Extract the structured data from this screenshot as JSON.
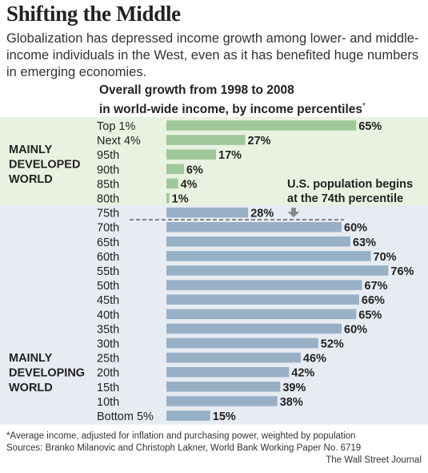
{
  "header": {
    "title": "Shifting the Middle",
    "subtitle": "Globalization has depressed income growth among lower- and middle-income individuals in the West, even as it has benefited huge numbers in emerging economies."
  },
  "chart_title": {
    "line1": "Overall growth from 1998 to 2008",
    "line2": "in world-wide income, by income percentiles",
    "marker": "*"
  },
  "regions": {
    "developed": [
      "MAINLY",
      "DEVELOPED",
      "WORLD"
    ],
    "developing": [
      "MAINLY",
      "DEVELOPING",
      "WORLD"
    ]
  },
  "annotation": {
    "line1": "U.S. population begins",
    "line2": "at the 74th percentile"
  },
  "colors": {
    "developed_bg": "#e9f2e1",
    "developing_bg": "#e6ecf2",
    "developed_bar": "#9ec79a",
    "developing_bar": "#98b0c6",
    "arrow": "#8a8a8a",
    "dash": "#777777"
  },
  "chart_data": {
    "type": "bar",
    "orientation": "horizontal",
    "categories": [
      "Top 1%",
      "Next 4%",
      "95th",
      "90th",
      "85th",
      "80th",
      "75th",
      "70th",
      "65th",
      "60th",
      "55th",
      "50th",
      "45th",
      "40th",
      "35th",
      "30th",
      "25th",
      "20th",
      "15th",
      "10th",
      "Bottom 5%"
    ],
    "values": [
      65,
      27,
      17,
      6,
      4,
      1,
      28,
      60,
      63,
      70,
      76,
      67,
      66,
      65,
      60,
      52,
      46,
      42,
      39,
      38,
      15
    ],
    "labels": [
      "65%",
      "27%",
      "17%",
      "6%",
      "4%",
      "1%",
      "28%",
      "60%",
      "63%",
      "70%",
      "76%",
      "67%",
      "66%",
      "65%",
      "60%",
      "52%",
      "46%",
      "42%",
      "39%",
      "38%",
      "15%"
    ],
    "groups": [
      "developed",
      "developed",
      "developed",
      "developed",
      "developed",
      "developed",
      "developing",
      "developing",
      "developing",
      "developing",
      "developing",
      "developing",
      "developing",
      "developing",
      "developing",
      "developing",
      "developing",
      "developing",
      "developing",
      "developing",
      "developing"
    ],
    "xlim": [
      0,
      100
    ],
    "grid": false,
    "legend": "none"
  },
  "footer": {
    "footnote": "*Average income, adjusted for inflation and purchasing power, weighted by population",
    "sources": "Sources: Branko Milanovic and Christoph Lakner, World Bank Working Paper No. 6719",
    "credit": "The Wall Street Journal"
  }
}
